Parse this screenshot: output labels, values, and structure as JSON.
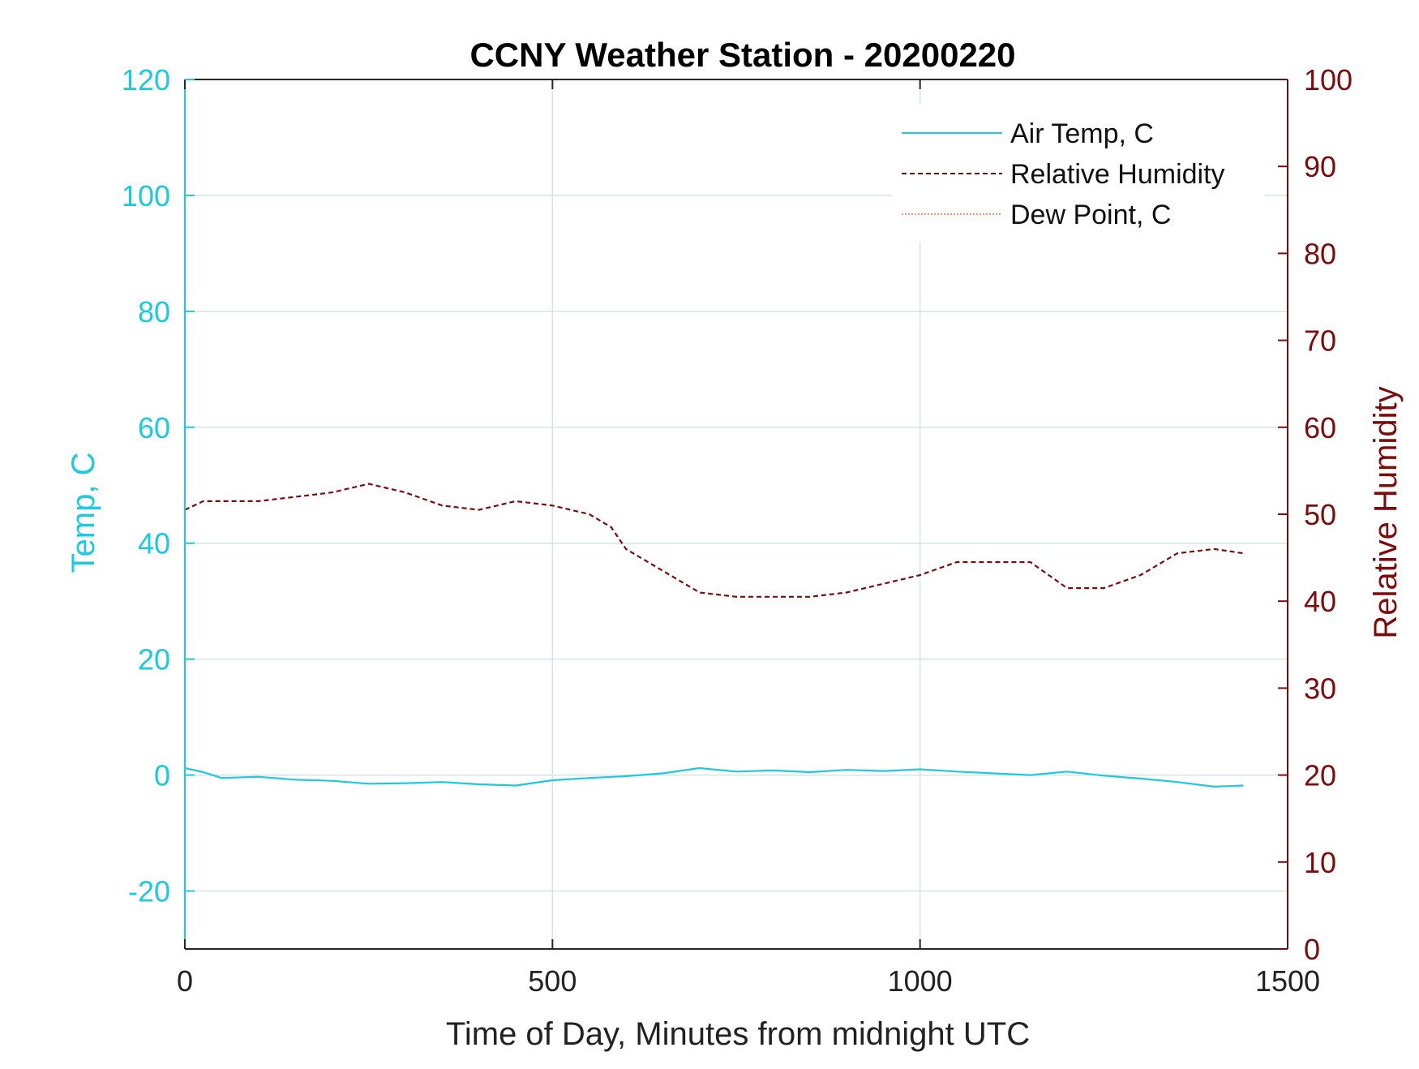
{
  "colors": {
    "temp": "#1fc8dc",
    "rh": "#7a0c0c",
    "dew": "#ff6a4d",
    "grid": "#d4e3ea",
    "axis": "#262626"
  },
  "chart_data": {
    "type": "line",
    "title": "CCNY Weather Station - 20200220",
    "xlabel": "Time of Day, Minutes from midnight UTC",
    "ylabel_left": "Temp, C",
    "ylabel_right": "Relative Humidity",
    "xlim": [
      0,
      1500
    ],
    "ylim_left": [
      -30,
      120
    ],
    "ylim_right": [
      0,
      100
    ],
    "xticks": [
      "0",
      "500",
      "1000",
      "1500"
    ],
    "yticks_left": [
      "-20",
      "0",
      "20",
      "40",
      "60",
      "80",
      "100",
      "120"
    ],
    "yticks_right": [
      "0",
      "10",
      "20",
      "30",
      "40",
      "50",
      "60",
      "70",
      "80",
      "90",
      "100"
    ],
    "grid": true,
    "legend_position": "top-right",
    "series": [
      {
        "name": "Air Temp, C",
        "axis": "left",
        "style": "solid",
        "x": [
          0,
          25,
          50,
          100,
          150,
          200,
          250,
          300,
          350,
          400,
          450,
          500,
          550,
          600,
          650,
          700,
          750,
          800,
          850,
          900,
          950,
          1000,
          1050,
          1100,
          1150,
          1200,
          1250,
          1300,
          1350,
          1400,
          1440
        ],
        "values": [
          1.2,
          0.5,
          -0.5,
          -0.3,
          -0.8,
          -1.0,
          -1.5,
          -1.4,
          -1.2,
          -1.6,
          -1.8,
          -0.9,
          -0.5,
          -0.2,
          0.3,
          1.2,
          0.6,
          0.8,
          0.5,
          0.9,
          0.7,
          1.0,
          0.6,
          0.3,
          0.0,
          0.6,
          -0.1,
          -0.6,
          -1.2,
          -2.0,
          -1.8
        ]
      },
      {
        "name": "Relative Humidity",
        "axis": "right",
        "style": "dashed",
        "x": [
          0,
          25,
          50,
          100,
          150,
          200,
          250,
          300,
          350,
          400,
          450,
          500,
          550,
          580,
          600,
          650,
          700,
          750,
          800,
          850,
          900,
          950,
          1000,
          1050,
          1100,
          1150,
          1200,
          1250,
          1300,
          1350,
          1400,
          1440
        ],
        "values": [
          50.5,
          51.5,
          51.5,
          51.5,
          52.0,
          52.5,
          53.5,
          52.5,
          51.0,
          50.5,
          51.5,
          51.0,
          50.0,
          48.5,
          46.0,
          43.5,
          41.0,
          40.5,
          40.5,
          40.5,
          41.0,
          42.0,
          43.0,
          44.5,
          44.5,
          44.5,
          41.5,
          41.5,
          43.0,
          45.5,
          46.0,
          45.5
        ]
      },
      {
        "name": "Dew Point, C",
        "axis": "left",
        "style": "dotted",
        "x": [],
        "values": []
      }
    ]
  }
}
